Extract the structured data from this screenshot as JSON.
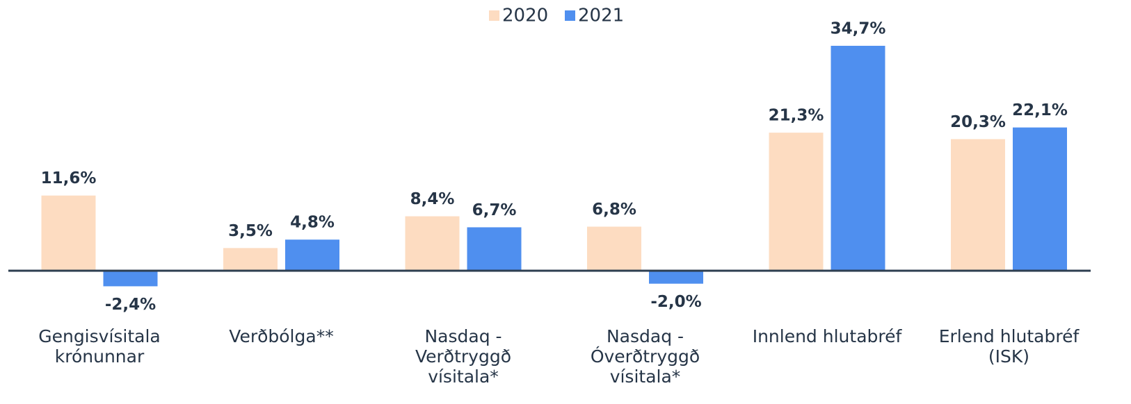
{
  "chart_data": {
    "type": "bar",
    "categories": [
      "Gengisvísitala\nkrónunnar",
      "Verðbólga**",
      "Nasdaq -\nVerðtryggð\nvísitala*",
      "Nasdaq -\nÓverðtryggð\nvísitala*",
      "Innlend hlutabréf",
      "Erlend hlutabréf\n(ISK)"
    ],
    "series": [
      {
        "name": "2020",
        "color": "#fddcc1",
        "values": [
          11.6,
          3.5,
          8.4,
          6.8,
          21.3,
          20.3
        ],
        "value_labels": [
          "11,6%",
          "3,5%",
          "8,4%",
          "6,8%",
          "21,3%",
          "20,3%"
        ]
      },
      {
        "name": "2021",
        "color": "#4f8fef",
        "values": [
          -2.4,
          4.8,
          6.7,
          -2.0,
          34.7,
          22.1
        ],
        "value_labels": [
          "-2,4%",
          "4,8%",
          "6,7%",
          "-2,0%",
          "34,7%",
          "22,1%"
        ]
      }
    ],
    "ylim": [
      -5,
      37
    ],
    "legend": "top"
  }
}
